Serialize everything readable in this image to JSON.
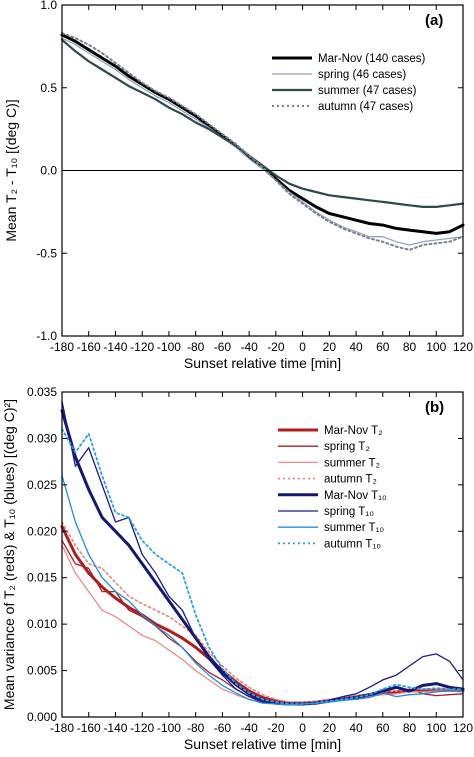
{
  "chart_data": [
    {
      "type": "line",
      "panel_label": "(a)",
      "ylabel": "Mean T₂ - T₁₀ [(deg C)]",
      "xlabel": "Sunset relative time [min]",
      "xlim": [
        -180,
        120
      ],
      "ylim": [
        -1.0,
        1.0
      ],
      "x_ticks": [
        "-180",
        "-160",
        "-140",
        "-120",
        "-100",
        "-80",
        "-60",
        "-40",
        "-20",
        "0",
        "20",
        "40",
        "60",
        "80",
        "100",
        "120"
      ],
      "y_ticks": [
        "-1.0",
        "-0.5",
        "0.0",
        "0.5",
        "1.0"
      ],
      "legend_position": "top-right",
      "grid": false,
      "zero_line": true,
      "series": [
        {
          "name": "Mar-Nov (140 cases)",
          "color": "#000000",
          "style": "solid",
          "width": 3,
          "x": [
            -180,
            -170,
            -160,
            -150,
            -140,
            -130,
            -120,
            -110,
            -100,
            -90,
            -80,
            -70,
            -60,
            -50,
            -40,
            -30,
            -20,
            -10,
            0,
            10,
            20,
            30,
            40,
            50,
            60,
            70,
            80,
            90,
            100,
            110,
            120
          ],
          "y": [
            0.82,
            0.78,
            0.73,
            0.68,
            0.63,
            0.57,
            0.52,
            0.47,
            0.43,
            0.38,
            0.33,
            0.27,
            0.21,
            0.15,
            0.08,
            0.02,
            -0.05,
            -0.12,
            -0.17,
            -0.22,
            -0.26,
            -0.28,
            -0.3,
            -0.32,
            -0.33,
            -0.35,
            -0.36,
            -0.37,
            -0.38,
            -0.37,
            -0.33
          ]
        },
        {
          "name": "spring (46 cases)",
          "color": "#8ea6bf",
          "style": "solid",
          "width": 1.3,
          "x": [
            -180,
            -170,
            -160,
            -150,
            -140,
            -130,
            -120,
            -110,
            -100,
            -90,
            -80,
            -70,
            -60,
            -50,
            -40,
            -30,
            -20,
            -10,
            0,
            10,
            20,
            30,
            40,
            50,
            60,
            70,
            80,
            90,
            100,
            110,
            120
          ],
          "y": [
            0.8,
            0.76,
            0.71,
            0.66,
            0.61,
            0.55,
            0.5,
            0.45,
            0.41,
            0.36,
            0.31,
            0.26,
            0.2,
            0.14,
            0.07,
            0.01,
            -0.06,
            -0.13,
            -0.19,
            -0.25,
            -0.3,
            -0.34,
            -0.37,
            -0.4,
            -0.4,
            -0.43,
            -0.45,
            -0.43,
            -0.42,
            -0.41,
            -0.4
          ]
        },
        {
          "name": "summer (47 cases)",
          "color": "#2b4a4a",
          "style": "solid",
          "width": 2.2,
          "x": [
            -180,
            -170,
            -160,
            -150,
            -140,
            -130,
            -120,
            -110,
            -100,
            -90,
            -80,
            -70,
            -60,
            -50,
            -40,
            -30,
            -20,
            -10,
            0,
            10,
            20,
            30,
            40,
            50,
            60,
            70,
            80,
            90,
            100,
            110,
            120
          ],
          "y": [
            0.79,
            0.72,
            0.66,
            0.61,
            0.56,
            0.51,
            0.47,
            0.43,
            0.38,
            0.34,
            0.29,
            0.25,
            0.2,
            0.15,
            0.09,
            0.03,
            -0.03,
            -0.08,
            -0.11,
            -0.13,
            -0.15,
            -0.16,
            -0.17,
            -0.18,
            -0.19,
            -0.2,
            -0.21,
            -0.22,
            -0.22,
            -0.21,
            -0.2
          ]
        },
        {
          "name": "autumn (47 cases)",
          "color": "#7a8090",
          "style": "dotted",
          "width": 2,
          "x": [
            -180,
            -170,
            -160,
            -150,
            -140,
            -130,
            -120,
            -110,
            -100,
            -90,
            -80,
            -70,
            -60,
            -50,
            -40,
            -30,
            -20,
            -10,
            0,
            10,
            20,
            30,
            40,
            50,
            60,
            70,
            80,
            90,
            100,
            110,
            120
          ],
          "y": [
            0.83,
            0.8,
            0.76,
            0.71,
            0.65,
            0.59,
            0.53,
            0.48,
            0.44,
            0.39,
            0.34,
            0.28,
            0.22,
            0.16,
            0.09,
            0.02,
            -0.06,
            -0.14,
            -0.2,
            -0.26,
            -0.31,
            -0.35,
            -0.38,
            -0.41,
            -0.43,
            -0.46,
            -0.48,
            -0.45,
            -0.44,
            -0.43,
            -0.4
          ]
        }
      ]
    },
    {
      "type": "line",
      "panel_label": "(b)",
      "ylabel": "Mean variance of T₂ (reds) & T₁₀ (blues) [(deg C)²]",
      "xlabel": "Sunset relative time [min]",
      "xlim": [
        -180,
        120
      ],
      "ylim": [
        0,
        0.035
      ],
      "x_ticks": [
        "-180",
        "-160",
        "-140",
        "-120",
        "-100",
        "-80",
        "-60",
        "-40",
        "-20",
        "0",
        "20",
        "40",
        "60",
        "80",
        "100",
        "120"
      ],
      "y_ticks": [
        "0.000",
        "0.005",
        "0.010",
        "0.015",
        "0.020",
        "0.025",
        "0.030",
        "0.035"
      ],
      "legend_position": "top-right",
      "grid": false,
      "series": [
        {
          "name": "Mar-Nov T₂",
          "color": "#b01c1c",
          "style": "solid",
          "width": 3,
          "x": [
            -180,
            -170,
            -160,
            -150,
            -140,
            -130,
            -120,
            -110,
            -100,
            -90,
            -80,
            -70,
            -60,
            -50,
            -40,
            -30,
            -20,
            -10,
            0,
            10,
            20,
            30,
            40,
            50,
            60,
            70,
            80,
            90,
            100,
            110,
            120
          ],
          "y": [
            0.0205,
            0.0175,
            0.0155,
            0.014,
            0.0128,
            0.0118,
            0.011,
            0.01,
            0.0093,
            0.0085,
            0.0075,
            0.0063,
            0.005,
            0.0038,
            0.0028,
            0.0021,
            0.0017,
            0.0015,
            0.0015,
            0.0016,
            0.0018,
            0.002,
            0.0022,
            0.0024,
            0.0026,
            0.0027,
            0.0028,
            0.0028,
            0.0029,
            0.0029,
            0.0029
          ]
        },
        {
          "name": "spring T₂",
          "color": "#a8202a",
          "style": "solid",
          "width": 1.3,
          "x": [
            -180,
            -170,
            -160,
            -150,
            -140,
            -130,
            -120,
            -110,
            -100,
            -90,
            -80,
            -70,
            -60,
            -50,
            -40,
            -30,
            -20,
            -10,
            0,
            10,
            20,
            30,
            40,
            50,
            60,
            70,
            80,
            90,
            100,
            110,
            120
          ],
          "y": [
            0.019,
            0.0165,
            0.016,
            0.0135,
            0.0135,
            0.0115,
            0.0108,
            0.0098,
            0.0085,
            0.0075,
            0.006,
            0.0048,
            0.004,
            0.003,
            0.0022,
            0.0018,
            0.0016,
            0.0014,
            0.0015,
            0.0016,
            0.0018,
            0.0019,
            0.002,
            0.0023,
            0.0025,
            0.0027,
            0.003,
            0.0025,
            0.0023,
            0.0024,
            0.0025
          ]
        },
        {
          "name": "summer T₂",
          "color": "#ec8a84",
          "style": "solid",
          "width": 1.3,
          "x": [
            -180,
            -170,
            -160,
            -150,
            -140,
            -130,
            -120,
            -110,
            -100,
            -90,
            -80,
            -70,
            -60,
            -50,
            -40,
            -30,
            -20,
            -10,
            0,
            10,
            20,
            30,
            40,
            50,
            60,
            70,
            80,
            90,
            100,
            110,
            120
          ],
          "y": [
            0.0185,
            0.0155,
            0.0135,
            0.0115,
            0.0108,
            0.0098,
            0.0088,
            0.0082,
            0.0072,
            0.0062,
            0.005,
            0.004,
            0.003,
            0.0024,
            0.0019,
            0.0016,
            0.0015,
            0.0014,
            0.0015,
            0.0016,
            0.0017,
            0.0019,
            0.002,
            0.0022,
            0.0024,
            0.0025,
            0.0027,
            0.0027,
            0.0028,
            0.0028,
            0.0028
          ]
        },
        {
          "name": "autumn T₂",
          "color": "#e8837a",
          "style": "dotted",
          "width": 1.6,
          "x": [
            -180,
            -170,
            -160,
            -150,
            -140,
            -130,
            -120,
            -110,
            -100,
            -90,
            -80,
            -70,
            -60,
            -50,
            -40,
            -30,
            -20,
            -10,
            0,
            10,
            20,
            30,
            40,
            50,
            60,
            70,
            80,
            90,
            100,
            110,
            120
          ],
          "y": [
            0.021,
            0.0185,
            0.0165,
            0.016,
            0.0145,
            0.013,
            0.0122,
            0.0115,
            0.0108,
            0.0098,
            0.0088,
            0.007,
            0.0055,
            0.0042,
            0.0032,
            0.0024,
            0.0019,
            0.0016,
            0.0016,
            0.0017,
            0.0019,
            0.0021,
            0.0023,
            0.0025,
            0.0027,
            0.0028,
            0.0029,
            0.003,
            0.003,
            0.003,
            0.003
          ]
        },
        {
          "name": "Mar-Nov T₁₀",
          "color": "#141870",
          "style": "solid",
          "width": 3,
          "x": [
            -180,
            -170,
            -160,
            -150,
            -140,
            -130,
            -120,
            -110,
            -100,
            -90,
            -80,
            -70,
            -60,
            -50,
            -40,
            -30,
            -20,
            -10,
            0,
            10,
            20,
            30,
            40,
            50,
            60,
            70,
            80,
            90,
            100,
            110,
            120
          ],
          "y": [
            0.033,
            0.028,
            0.0245,
            0.0215,
            0.02,
            0.0185,
            0.0165,
            0.0145,
            0.0125,
            0.0105,
            0.0085,
            0.0065,
            0.0048,
            0.0035,
            0.0025,
            0.0018,
            0.0015,
            0.0014,
            0.0014,
            0.0015,
            0.0017,
            0.0019,
            0.0021,
            0.0024,
            0.0028,
            0.0032,
            0.0028,
            0.0034,
            0.0036,
            0.0032,
            0.003
          ]
        },
        {
          "name": "spring T₁₀",
          "color": "#1a1a8c",
          "style": "solid",
          "width": 1.3,
          "x": [
            -180,
            -170,
            -160,
            -150,
            -140,
            -130,
            -120,
            -110,
            -100,
            -90,
            -80,
            -70,
            -60,
            -50,
            -40,
            -30,
            -20,
            -10,
            0,
            10,
            20,
            30,
            40,
            50,
            60,
            70,
            80,
            90,
            100,
            110,
            120
          ],
          "y": [
            0.034,
            0.027,
            0.029,
            0.025,
            0.021,
            0.0215,
            0.0175,
            0.0155,
            0.013,
            0.0115,
            0.0085,
            0.0062,
            0.0045,
            0.003,
            0.0022,
            0.0016,
            0.0014,
            0.0013,
            0.0014,
            0.0015,
            0.0018,
            0.0022,
            0.0025,
            0.0032,
            0.004,
            0.0045,
            0.0055,
            0.0065,
            0.0068,
            0.006,
            0.004
          ]
        },
        {
          "name": "summer T₁₀",
          "color": "#1e8ee0",
          "style": "solid",
          "width": 1.3,
          "x": [
            -180,
            -170,
            -160,
            -150,
            -140,
            -130,
            -120,
            -110,
            -100,
            -90,
            -80,
            -70,
            -60,
            -50,
            -40,
            -30,
            -20,
            -10,
            0,
            10,
            20,
            30,
            40,
            50,
            60,
            70,
            80,
            90,
            100,
            110,
            120
          ],
          "y": [
            0.026,
            0.021,
            0.0175,
            0.015,
            0.0135,
            0.0125,
            0.011,
            0.0098,
            0.0088,
            0.0075,
            0.0058,
            0.0045,
            0.0034,
            0.0026,
            0.0019,
            0.0015,
            0.0014,
            0.0013,
            0.0014,
            0.0015,
            0.0016,
            0.0018,
            0.0019,
            0.0021,
            0.0026,
            0.0022,
            0.0024,
            0.0025,
            0.0027,
            0.0028,
            0.0027
          ]
        },
        {
          "name": "autumn T₁₀",
          "color": "#2aa0e8",
          "style": "dotted",
          "width": 1.8,
          "x": [
            -180,
            -170,
            -160,
            -150,
            -140,
            -130,
            -120,
            -110,
            -100,
            -90,
            -80,
            -70,
            -60,
            -50,
            -40,
            -30,
            -20,
            -10,
            0,
            10,
            20,
            30,
            40,
            50,
            60,
            70,
            80,
            90,
            100,
            110,
            120
          ],
          "y": [
            0.031,
            0.0285,
            0.0305,
            0.026,
            0.022,
            0.0215,
            0.019,
            0.0175,
            0.0165,
            0.0155,
            0.011,
            0.0075,
            0.0052,
            0.0036,
            0.0026,
            0.0019,
            0.0016,
            0.0014,
            0.0014,
            0.0015,
            0.0017,
            0.0019,
            0.0021,
            0.0024,
            0.003,
            0.0035,
            0.0032,
            0.003,
            0.0031,
            0.003,
            0.003
          ]
        }
      ]
    }
  ]
}
